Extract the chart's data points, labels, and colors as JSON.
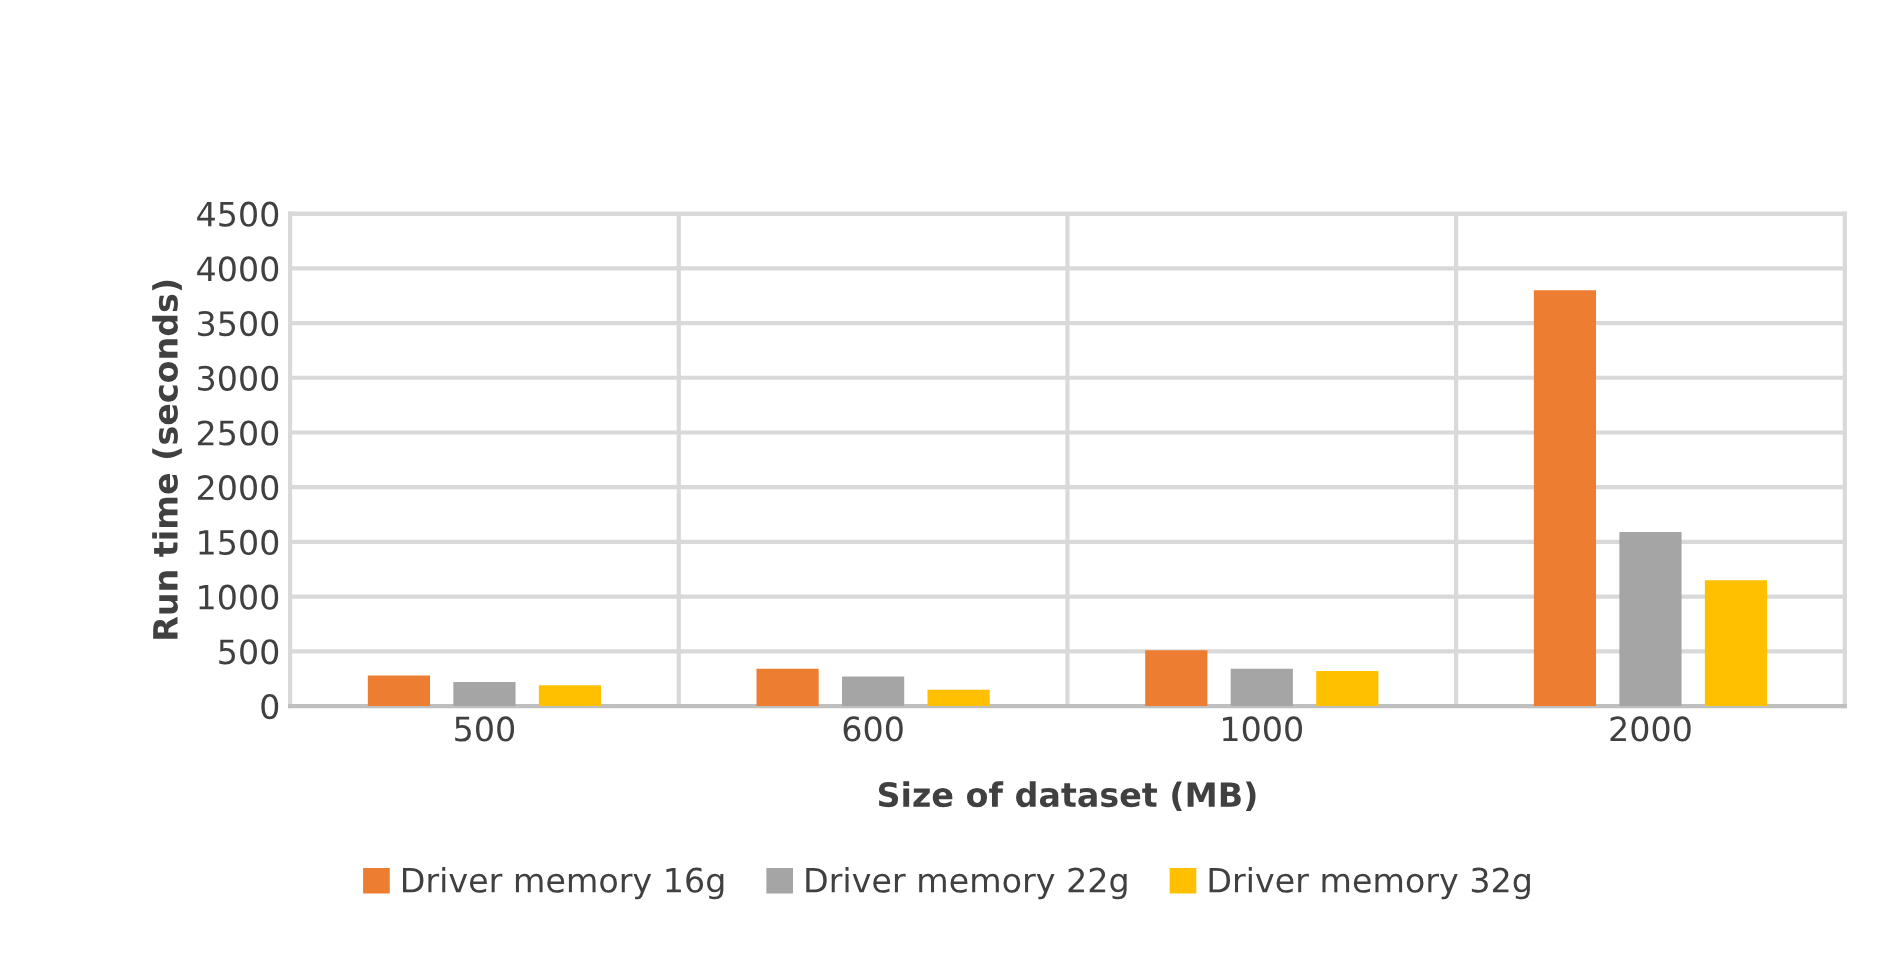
{
  "chart_data": {
    "type": "bar",
    "xlabel": "Size of dataset (MB)",
    "ylabel": "Run time (seconds)",
    "categories": [
      "500",
      "600",
      "1000",
      "2000"
    ],
    "series": [
      {
        "name": "Driver memory 16g",
        "color": "#ed7d31",
        "values": [
          280,
          340,
          510,
          3800
        ]
      },
      {
        "name": "Driver memory 22g",
        "color": "#a5a5a5",
        "values": [
          220,
          270,
          340,
          1590
        ]
      },
      {
        "name": "Driver memory 32g",
        "color": "#ffc000",
        "values": [
          190,
          150,
          320,
          1150
        ]
      }
    ],
    "ylim": [
      0,
      4500
    ],
    "yticks": [
      0,
      500,
      1000,
      1500,
      2000,
      2500,
      3000,
      3500,
      4000,
      4500
    ],
    "grid": true,
    "legend": "bottom"
  }
}
